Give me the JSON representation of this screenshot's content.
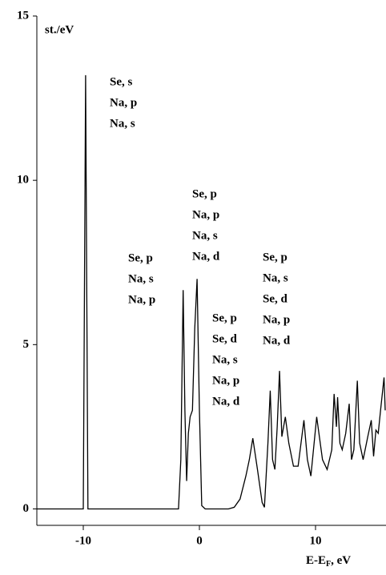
{
  "chart_data": {
    "type": "line",
    "ylabel": "st./eV",
    "xlabel": {
      "text": "E-E",
      "subscript": "F",
      "suffix": ", eV"
    },
    "x": [
      -14,
      -10.3,
      -10.0,
      -9.8,
      -9.6,
      -9.3,
      -1.8,
      -1.6,
      -1.4,
      -1.25,
      -1.1,
      -0.95,
      -0.8,
      -0.6,
      -0.4,
      -0.2,
      0.0,
      0.2,
      0.5,
      2.5,
      3.0,
      3.5,
      4.0,
      4.3,
      4.6,
      5.0,
      5.4,
      5.6,
      5.9,
      6.1,
      6.3,
      6.5,
      6.7,
      6.9,
      7.1,
      7.4,
      7.7,
      8.1,
      8.5,
      9.0,
      9.3,
      9.6,
      10.1,
      10.6,
      11.0,
      11.4,
      11.6,
      11.8,
      11.9,
      12.1,
      12.3,
      12.6,
      12.9,
      13.1,
      13.3,
      13.6,
      13.8,
      14.1,
      14.5,
      14.8,
      15.0,
      15.2,
      15.4,
      15.6,
      15.9,
      16.0
    ],
    "values": [
      0,
      0,
      0,
      13.2,
      0,
      0,
      0,
      1.5,
      6.66,
      3.0,
      0.85,
      2.3,
      2.8,
      3.0,
      5.5,
      7.0,
      3.0,
      0.1,
      0,
      0,
      0.05,
      0.3,
      1.0,
      1.5,
      2.15,
      1.2,
      0.2,
      0.05,
      2.0,
      3.6,
      1.5,
      1.2,
      2.5,
      4.2,
      2.2,
      2.8,
      2.0,
      1.3,
      1.3,
      2.7,
      1.5,
      1.0,
      2.8,
      1.5,
      1.2,
      1.8,
      3.5,
      2.5,
      3.4,
      2.0,
      1.8,
      2.3,
      3.2,
      1.5,
      1.8,
      3.9,
      2.0,
      1.5,
      2.2,
      2.7,
      1.6,
      2.4,
      2.3,
      3.0,
      4.0,
      3.0
    ],
    "color": "#000000",
    "xlim": [
      -14,
      16
    ],
    "xticks": [
      -10,
      0,
      10
    ],
    "ylim": [
      -0.5,
      15
    ],
    "yticks": [
      0,
      5,
      10,
      15
    ],
    "annotations": [
      [
        "Se, s",
        "Na, p",
        "Na, s"
      ],
      [
        "Se, p",
        "Na, s",
        "Na, p"
      ],
      [
        "Se, p",
        "Na, p",
        "Na, s",
        "Na, d"
      ],
      [
        "Se, p",
        "Se, d",
        "Na, s",
        "Na, p",
        "Na, d"
      ],
      [
        "Se, p",
        "Na, s",
        "Se, d",
        "Na, p",
        "Na, d"
      ]
    ]
  }
}
